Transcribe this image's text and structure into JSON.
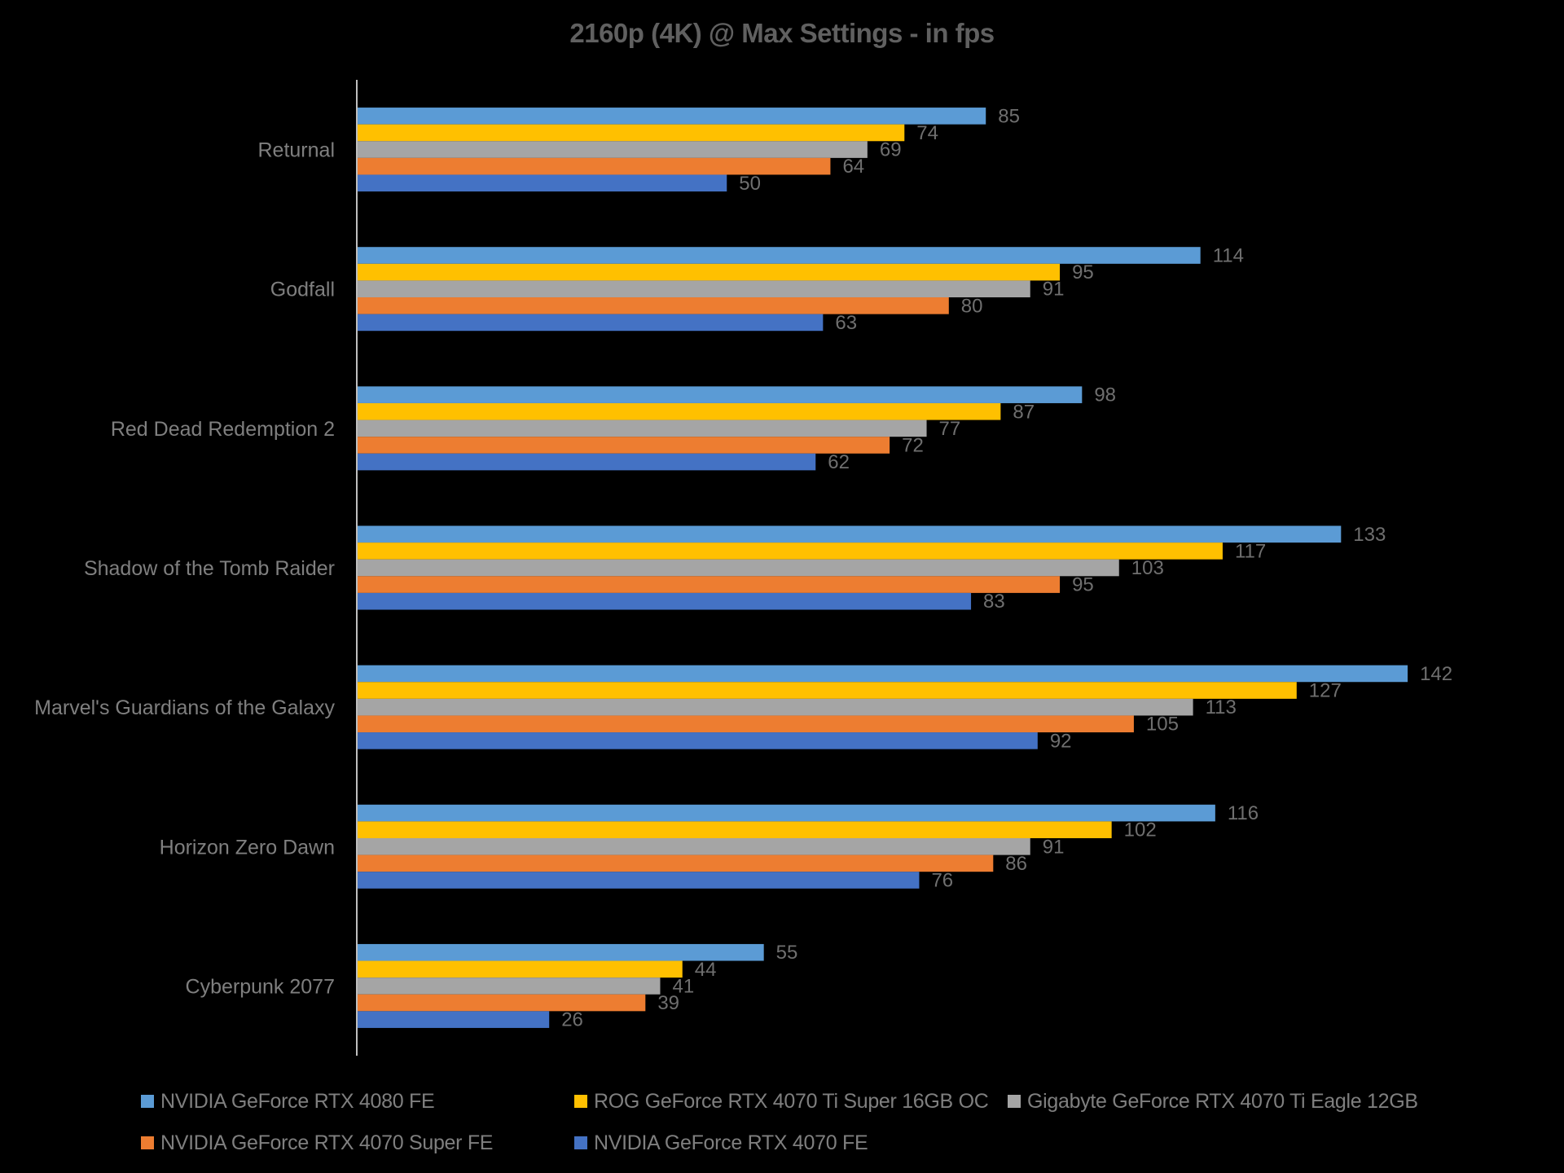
{
  "chart_data": {
    "type": "bar",
    "orientation": "horizontal",
    "title": "2160p (4K) @ Max Settings - in fps",
    "xlabel": "",
    "ylabel": "",
    "xlim": [
      0,
      160
    ],
    "grid": false,
    "legend_position": "bottom",
    "data_labels": true,
    "categories": [
      "Returnal",
      "Godfall",
      "Red Dead Redemption 2",
      "Shadow of the Tomb Raider",
      "Marvel's Guardians of the Galaxy",
      "Horizon Zero Dawn",
      "Cyberpunk 2077"
    ],
    "series": [
      {
        "name": "NVIDIA GeForce RTX 4080 FE",
        "color": "#5b9bd5",
        "values": [
          85,
          114,
          98,
          133,
          142,
          116,
          55
        ]
      },
      {
        "name": "ROG GeForce RTX 4070 Ti Super 16GB OC",
        "color": "#ffc000",
        "values": [
          74,
          95,
          87,
          117,
          127,
          102,
          44
        ]
      },
      {
        "name": "Gigabyte GeForce RTX 4070 Ti Eagle 12GB",
        "color": "#a5a5a5",
        "values": [
          69,
          91,
          77,
          103,
          113,
          91,
          41
        ]
      },
      {
        "name": "NVIDIA GeForce RTX 4070 Super FE",
        "color": "#ed7d31",
        "values": [
          64,
          80,
          72,
          95,
          105,
          86,
          39
        ]
      },
      {
        "name": "NVIDIA GeForce RTX 4070 FE",
        "color": "#4472c4",
        "values": [
          50,
          63,
          62,
          83,
          92,
          76,
          26
        ]
      }
    ]
  }
}
